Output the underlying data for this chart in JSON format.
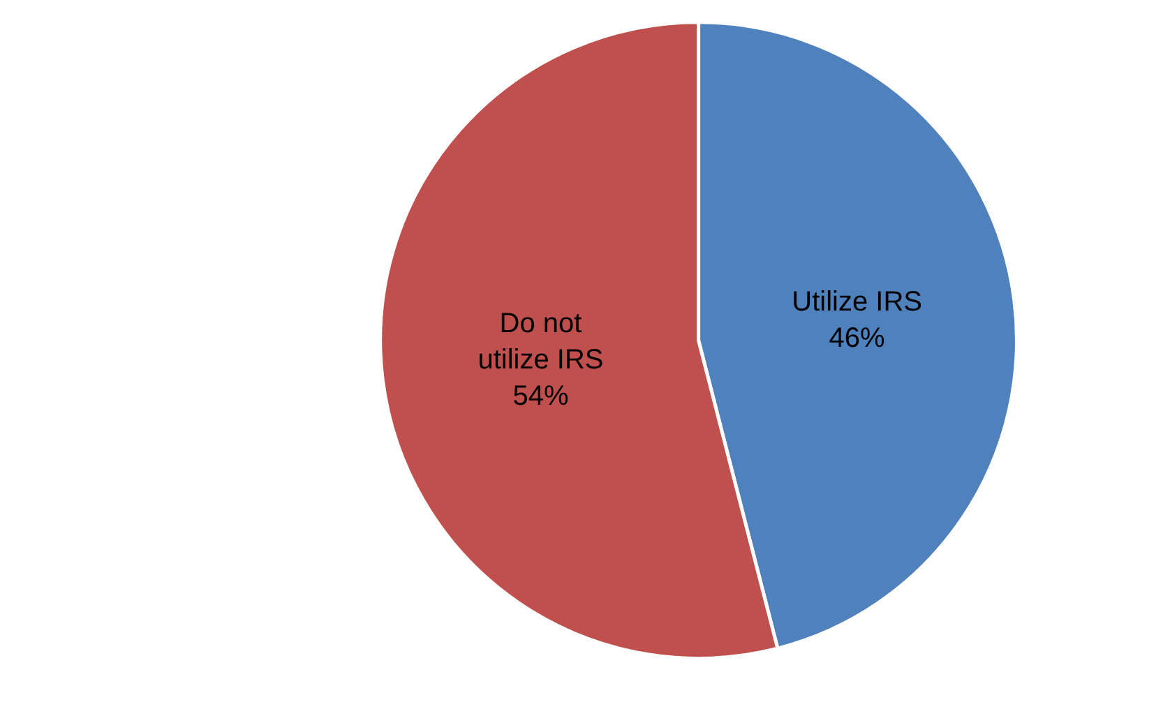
{
  "chart_data": {
    "type": "pie",
    "categories": [
      "Utilize IRS",
      "Do not utilize IRS"
    ],
    "values": [
      46,
      54
    ],
    "colors": [
      "#4f81bd",
      "#c0504d"
    ],
    "value_labels": [
      "46%",
      "54%"
    ],
    "legend": false
  }
}
